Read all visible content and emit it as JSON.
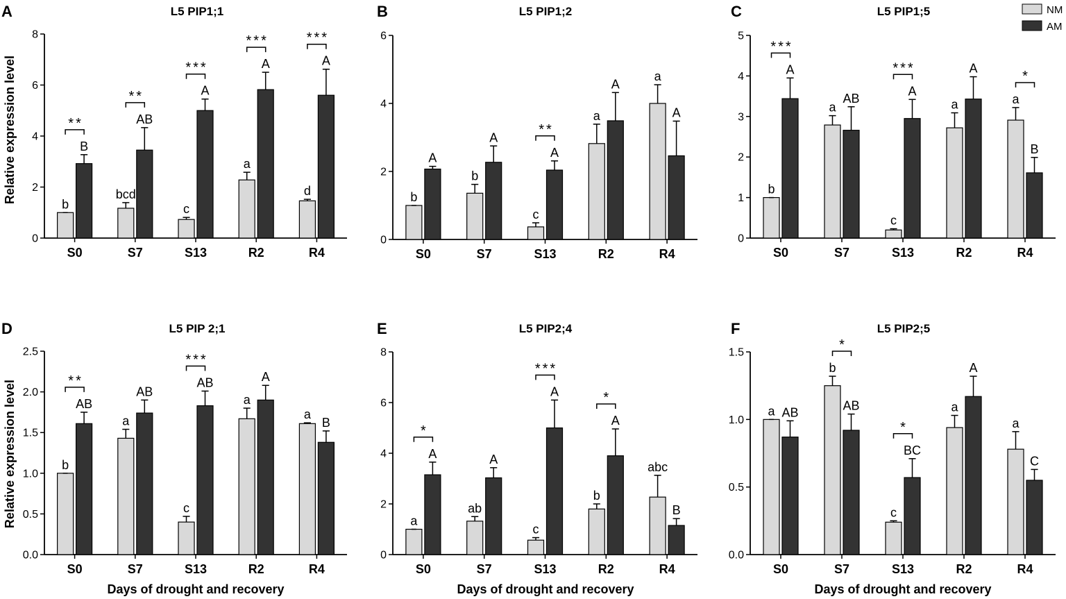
{
  "xlabel": "Days of drought and recovery",
  "ylabel": "Relative expression level",
  "legend": [
    {
      "name": "NM",
      "color": "#d9d9d9"
    },
    {
      "name": "AM",
      "color": "#333333"
    }
  ],
  "chart_data": [
    {
      "type": "bar",
      "panel": "A",
      "title": "L5 PIP1;1",
      "categories": [
        "S0",
        "S7",
        "S13",
        "R2",
        "R4"
      ],
      "ylim": [
        0,
        8
      ],
      "yticks": [
        "0",
        "2",
        "4",
        "6",
        "8"
      ],
      "series": [
        {
          "name": "NM",
          "values": [
            1.0,
            1.17,
            0.73,
            2.28,
            1.46
          ],
          "errors": [
            0.0,
            0.22,
            0.08,
            0.3,
            0.06
          ],
          "labels": [
            "b",
            "bcd",
            "c",
            "a",
            "d"
          ]
        },
        {
          "name": "AM",
          "values": [
            2.92,
            3.45,
            5.0,
            5.82,
            5.6
          ],
          "errors": [
            0.35,
            0.88,
            0.45,
            0.68,
            1.02
          ],
          "labels": [
            "B",
            "AB",
            "A",
            "A",
            "A"
          ]
        }
      ],
      "significance": [
        "**",
        "**",
        "***",
        "***",
        "***"
      ]
    },
    {
      "type": "bar",
      "panel": "B",
      "title": "L5 PIP1;2",
      "categories": [
        "S0",
        "S7",
        "S13",
        "R2",
        "R4"
      ],
      "ylim": [
        0,
        6
      ],
      "yticks": [
        "0",
        "2",
        "4",
        "6"
      ],
      "series": [
        {
          "name": "NM",
          "values": [
            1.0,
            1.36,
            0.37,
            2.82,
            4.0
          ],
          "errors": [
            0.0,
            0.26,
            0.12,
            0.57,
            0.55
          ],
          "labels": [
            "b",
            "b",
            "c",
            "a",
            "a"
          ]
        },
        {
          "name": "AM",
          "values": [
            2.07,
            2.27,
            2.04,
            3.49,
            2.46
          ],
          "errors": [
            0.08,
            0.48,
            0.27,
            0.83,
            1.02
          ],
          "labels": [
            "A",
            "A",
            "A",
            "A",
            "A"
          ]
        }
      ],
      "significance": [
        "",
        "",
        "**",
        "",
        ""
      ]
    },
    {
      "type": "bar",
      "panel": "C",
      "title": "L5 PIP1;5",
      "categories": [
        "S0",
        "S7",
        "S13",
        "R2",
        "R4"
      ],
      "ylim": [
        0,
        5
      ],
      "yticks": [
        "0",
        "1",
        "2",
        "3",
        "4",
        "5"
      ],
      "series": [
        {
          "name": "NM",
          "values": [
            1.0,
            2.79,
            0.2,
            2.72,
            2.91
          ],
          "errors": [
            0.0,
            0.23,
            0.03,
            0.37,
            0.31
          ],
          "labels": [
            "b",
            "a",
            "c",
            "a",
            "a"
          ]
        },
        {
          "name": "AM",
          "values": [
            3.44,
            2.66,
            2.95,
            3.43,
            1.61
          ],
          "errors": [
            0.51,
            0.58,
            0.47,
            0.55,
            0.38
          ],
          "labels": [
            "A",
            "AB",
            "A",
            "A",
            "B"
          ]
        }
      ],
      "significance": [
        "***",
        "",
        "***",
        "",
        "*"
      ]
    },
    {
      "type": "bar",
      "panel": "D",
      "title": "L5 PIP 2;1",
      "categories": [
        "S0",
        "S7",
        "S13",
        "R2",
        "R4"
      ],
      "ylim": [
        0,
        2.5
      ],
      "yticks": [
        "0.0",
        "0.5",
        "1.0",
        "1.5",
        "2.0",
        "2.5"
      ],
      "series": [
        {
          "name": "NM",
          "values": [
            1.0,
            1.43,
            0.4,
            1.67,
            1.61
          ],
          "errors": [
            0.0,
            0.11,
            0.07,
            0.13,
            0.01
          ],
          "labels": [
            "b",
            "a",
            "c",
            "a",
            "a"
          ]
        },
        {
          "name": "AM",
          "values": [
            1.61,
            1.74,
            1.83,
            1.9,
            1.38
          ],
          "errors": [
            0.14,
            0.16,
            0.18,
            0.18,
            0.14
          ],
          "labels": [
            "AB",
            "AB",
            "AB",
            "A",
            "B"
          ]
        }
      ],
      "significance": [
        "**",
        "",
        "***",
        "",
        ""
      ]
    },
    {
      "type": "bar",
      "panel": "E",
      "title": "L5 PIP2;4",
      "categories": [
        "S0",
        "S7",
        "S13",
        "R2",
        "R4"
      ],
      "ylim": [
        0,
        8
      ],
      "yticks": [
        "0",
        "2",
        "4",
        "6",
        "8"
      ],
      "series": [
        {
          "name": "NM",
          "values": [
            1.0,
            1.32,
            0.57,
            1.8,
            2.27
          ],
          "errors": [
            0.0,
            0.18,
            0.1,
            0.2,
            0.86
          ],
          "labels": [
            "a",
            "ab",
            "c",
            "b",
            "abc"
          ]
        },
        {
          "name": "AM",
          "values": [
            3.15,
            3.03,
            5.0,
            3.9,
            1.15
          ],
          "errors": [
            0.5,
            0.4,
            1.1,
            1.06,
            0.27
          ],
          "labels": [
            "A",
            "A",
            "A",
            "A",
            "B"
          ]
        }
      ],
      "significance": [
        "*",
        "",
        "***",
        "*",
        ""
      ]
    },
    {
      "type": "bar",
      "panel": "F",
      "title": "L5 PIP2;5",
      "categories": [
        "S0",
        "S7",
        "S13",
        "R2",
        "R4"
      ],
      "ylim": [
        0,
        1.5
      ],
      "yticks": [
        "0.0",
        "0.5",
        "1.0",
        "1.5"
      ],
      "series": [
        {
          "name": "NM",
          "values": [
            1.0,
            1.25,
            0.24,
            0.94,
            0.78
          ],
          "errors": [
            0.0,
            0.07,
            0.01,
            0.09,
            0.13
          ],
          "labels": [
            "a",
            "b",
            "c",
            "a",
            "a"
          ]
        },
        {
          "name": "AM",
          "values": [
            0.87,
            0.92,
            0.57,
            1.17,
            0.55
          ],
          "errors": [
            0.12,
            0.12,
            0.14,
            0.15,
            0.08
          ],
          "labels": [
            "AB",
            "AB",
            "BC",
            "A",
            "C"
          ]
        }
      ],
      "significance": [
        "",
        "*",
        "*",
        "",
        ""
      ]
    }
  ]
}
